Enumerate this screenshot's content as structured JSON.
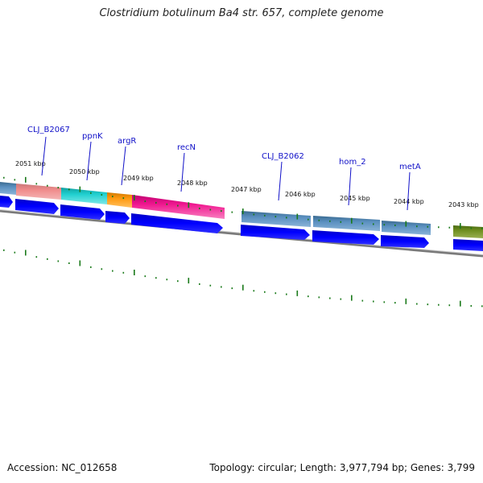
{
  "title": "Clostridium botulinum Ba4 str. 657, complete genome",
  "footer": {
    "accession": "Accession: NC_012658",
    "summary": "Topology: circular; Length: 3,977,794 bp; Genes: 3,799"
  },
  "ticks": [
    "2051 kbp",
    "2050 kbp",
    "2049 kbp",
    "2048 kbp",
    "2047 kbp",
    "2046 kbp",
    "2045 kbp",
    "2044 kbp",
    "2043 kbp"
  ],
  "gene_labels": [
    "CLJ_B2067",
    "ppnK",
    "argR",
    "recN",
    "CLJ_B2062",
    "hom_2",
    "metA"
  ],
  "colors": {
    "cds": "#0000ee",
    "tick": "#1a7a1a",
    "backbone": "#888888",
    "label": "#1010c8"
  }
}
